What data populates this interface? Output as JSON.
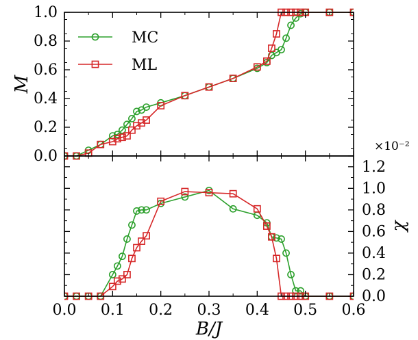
{
  "chart_data": [
    {
      "type": "line",
      "panel": "top",
      "xlabel": "",
      "ylabel": "M",
      "xlim": [
        0.0,
        0.6
      ],
      "ylim": [
        0.0,
        1.0
      ],
      "yticks": [
        0.0,
        0.2,
        0.4,
        0.6,
        0.8,
        1.0
      ],
      "ytick_labels": [
        "0.0",
        "0.2",
        "0.4",
        "0.6",
        "0.8",
        "1.0"
      ],
      "legend_position": "upper-left",
      "series": [
        {
          "name": "MC",
          "color": "#2ca02c",
          "marker": "circle",
          "x": [
            0.0,
            0.025,
            0.05,
            0.075,
            0.1,
            0.11,
            0.12,
            0.13,
            0.14,
            0.15,
            0.16,
            0.17,
            0.2,
            0.25,
            0.3,
            0.35,
            0.4,
            0.42,
            0.43,
            0.44,
            0.45,
            0.46,
            0.47,
            0.48,
            0.49,
            0.5,
            0.55,
            0.6
          ],
          "y": [
            0.0,
            0.0,
            0.04,
            0.08,
            0.14,
            0.15,
            0.18,
            0.22,
            0.26,
            0.31,
            0.32,
            0.34,
            0.37,
            0.42,
            0.48,
            0.54,
            0.61,
            0.65,
            0.7,
            0.72,
            0.74,
            0.82,
            0.91,
            0.96,
            0.99,
            1.0,
            1.0,
            1.0
          ]
        },
        {
          "name": "ML",
          "color": "#d62728",
          "marker": "square",
          "x": [
            0.0,
            0.025,
            0.05,
            0.075,
            0.1,
            0.11,
            0.12,
            0.13,
            0.14,
            0.15,
            0.16,
            0.17,
            0.2,
            0.25,
            0.3,
            0.35,
            0.4,
            0.42,
            0.43,
            0.44,
            0.45,
            0.46,
            0.47,
            0.48,
            0.49,
            0.5,
            0.55,
            0.6
          ],
          "y": [
            0.0,
            0.0,
            0.02,
            0.08,
            0.1,
            0.12,
            0.13,
            0.14,
            0.18,
            0.21,
            0.23,
            0.25,
            0.35,
            0.42,
            0.48,
            0.54,
            0.62,
            0.66,
            0.75,
            0.85,
            1.0,
            1.0,
            1.0,
            1.0,
            1.0,
            1.0,
            1.0,
            1.0
          ]
        }
      ]
    },
    {
      "type": "line",
      "panel": "bottom",
      "xlabel": "B/J",
      "ylabel": "χ",
      "y_multiplier": "×10⁻²",
      "xlim": [
        0.0,
        0.6
      ],
      "ylim": [
        0.0,
        1.3
      ],
      "xticks": [
        0.0,
        0.1,
        0.2,
        0.3,
        0.4,
        0.5,
        0.6
      ],
      "xtick_labels": [
        "0.0",
        "0.1",
        "0.2",
        "0.3",
        "0.4",
        "0.5",
        "0.6"
      ],
      "yticks": [
        0.0,
        0.2,
        0.4,
        0.6,
        0.8,
        1.0,
        1.2
      ],
      "ytick_labels": [
        "0.0",
        "0.2",
        "0.4",
        "0.6",
        "0.8",
        "1.0",
        "1.2"
      ],
      "series": [
        {
          "name": "MC",
          "color": "#2ca02c",
          "marker": "circle",
          "x": [
            0.0,
            0.025,
            0.05,
            0.075,
            0.1,
            0.11,
            0.12,
            0.13,
            0.14,
            0.15,
            0.16,
            0.17,
            0.2,
            0.25,
            0.3,
            0.35,
            0.4,
            0.42,
            0.43,
            0.44,
            0.45,
            0.46,
            0.47,
            0.48,
            0.49,
            0.5,
            0.55,
            0.6
          ],
          "y": [
            0.0,
            0.0,
            0.0,
            0.0,
            0.2,
            0.28,
            0.37,
            0.53,
            0.66,
            0.79,
            0.8,
            0.8,
            0.86,
            0.92,
            0.98,
            0.81,
            0.75,
            0.68,
            0.55,
            0.54,
            0.53,
            0.4,
            0.2,
            0.05,
            0.05,
            0.0,
            0.0,
            0.0
          ]
        },
        {
          "name": "ML",
          "color": "#d62728",
          "marker": "square",
          "x": [
            0.0,
            0.025,
            0.05,
            0.075,
            0.1,
            0.11,
            0.12,
            0.13,
            0.14,
            0.15,
            0.16,
            0.17,
            0.2,
            0.25,
            0.3,
            0.35,
            0.4,
            0.42,
            0.43,
            0.44,
            0.45,
            0.46,
            0.47,
            0.48,
            0.49,
            0.5,
            0.55,
            0.6
          ],
          "y": [
            0.0,
            0.0,
            0.0,
            0.0,
            0.09,
            0.14,
            0.16,
            0.2,
            0.35,
            0.45,
            0.51,
            0.56,
            0.88,
            0.97,
            0.96,
            0.95,
            0.81,
            0.65,
            0.55,
            0.35,
            0.0,
            0.0,
            0.0,
            0.0,
            0.0,
            0.0,
            0.0,
            0.0
          ]
        }
      ]
    }
  ]
}
